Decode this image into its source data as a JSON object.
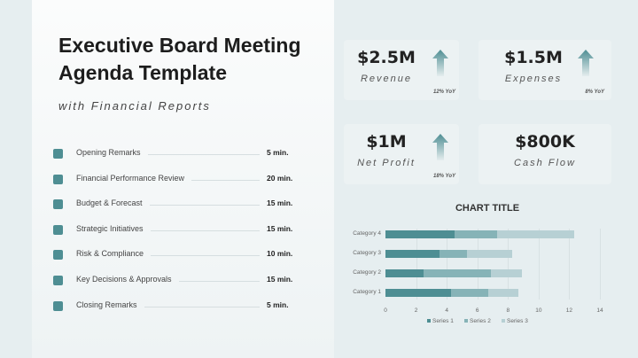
{
  "title_line1": "Executive Board Meeting",
  "title_line2": "Agenda Template",
  "subtitle": "with Financial Reports",
  "agenda": [
    {
      "label": "Opening Remarks",
      "time": "5 min."
    },
    {
      "label": "Financial Performance Review",
      "time": "20 min."
    },
    {
      "label": "Budget & Forecast",
      "time": "15 min."
    },
    {
      "label": "Strategic Initiatives",
      "time": "15 min."
    },
    {
      "label": "Risk & Compliance",
      "time": "10 min."
    },
    {
      "label": "Key Decisions & Approvals",
      "time": "15 min."
    },
    {
      "label": "Closing Remarks",
      "time": "5 min."
    }
  ],
  "kpis": [
    {
      "value": "$2.5M",
      "label": "Revenue",
      "yoy": "12% YoY",
      "icon": "arrow-up-icon"
    },
    {
      "value": "$1.5M",
      "label": "Expenses",
      "yoy": "8% YoY",
      "icon": "arrow-up-icon"
    },
    {
      "value": "$1M",
      "label": "Net Profit",
      "yoy": "18% YoY",
      "icon": "arrow-up-icon"
    },
    {
      "value": "$800K",
      "label": "Cash Flow"
    }
  ],
  "colors": {
    "accent": "#4e8e93",
    "series1": "#4e8e93",
    "series2": "#86b3b7",
    "series3": "#b7d0d4"
  },
  "chart_data": {
    "type": "bar",
    "orientation": "horizontal",
    "stacked": true,
    "title": "CHART TITLE",
    "categories": [
      "Category 1",
      "Category 2",
      "Category 3",
      "Category 4"
    ],
    "series": [
      {
        "name": "Series 1",
        "values": [
          4.3,
          2.5,
          3.5,
          4.5
        ]
      },
      {
        "name": "Series 2",
        "values": [
          2.4,
          4.4,
          1.8,
          2.8
        ]
      },
      {
        "name": "Series 3",
        "values": [
          2.0,
          2.0,
          3.0,
          5.0
        ]
      }
    ],
    "xlim": [
      0,
      14
    ],
    "xticks": [
      "0",
      "2",
      "4",
      "6",
      "8",
      "10",
      "12",
      "14"
    ],
    "grid": true,
    "legend": "bottom"
  }
}
